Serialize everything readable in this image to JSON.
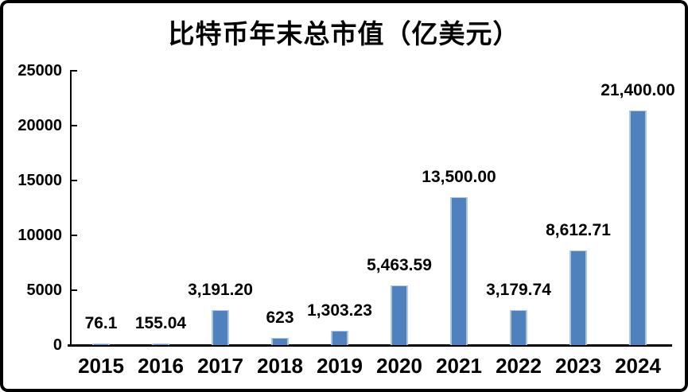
{
  "chart_data": {
    "type": "bar",
    "title": "比特币年末总市值（亿美元）",
    "categories": [
      "2015",
      "2016",
      "2017",
      "2018",
      "2019",
      "2020",
      "2021",
      "2022",
      "2023",
      "2024"
    ],
    "values": [
      76.1,
      155.04,
      3191.2,
      623,
      1303.23,
      5463.59,
      13500.0,
      3179.74,
      8612.71,
      21400.0
    ],
    "data_labels": [
      "76.1",
      "155.04",
      "3,191.20",
      "623",
      "1,303.23",
      "5,463.59",
      "13,500.00",
      "3,179.74",
      "8,612.71",
      "21,400.00"
    ],
    "xlabel": "",
    "ylabel": "",
    "ylim": [
      0,
      25000
    ],
    "yticks": [
      0,
      5000,
      10000,
      15000,
      20000,
      25000
    ],
    "ytick_labels": [
      "0",
      "5000",
      "10000",
      "15000",
      "20000",
      "25000"
    ],
    "grid": false,
    "legend": false,
    "colors": {
      "bar_fill": "#4F81BD",
      "bar_edge": "#AFC6E2",
      "axis": "#000000",
      "text": "#000000",
      "background": "#FFFFFF",
      "frame_border": "#000000"
    }
  }
}
